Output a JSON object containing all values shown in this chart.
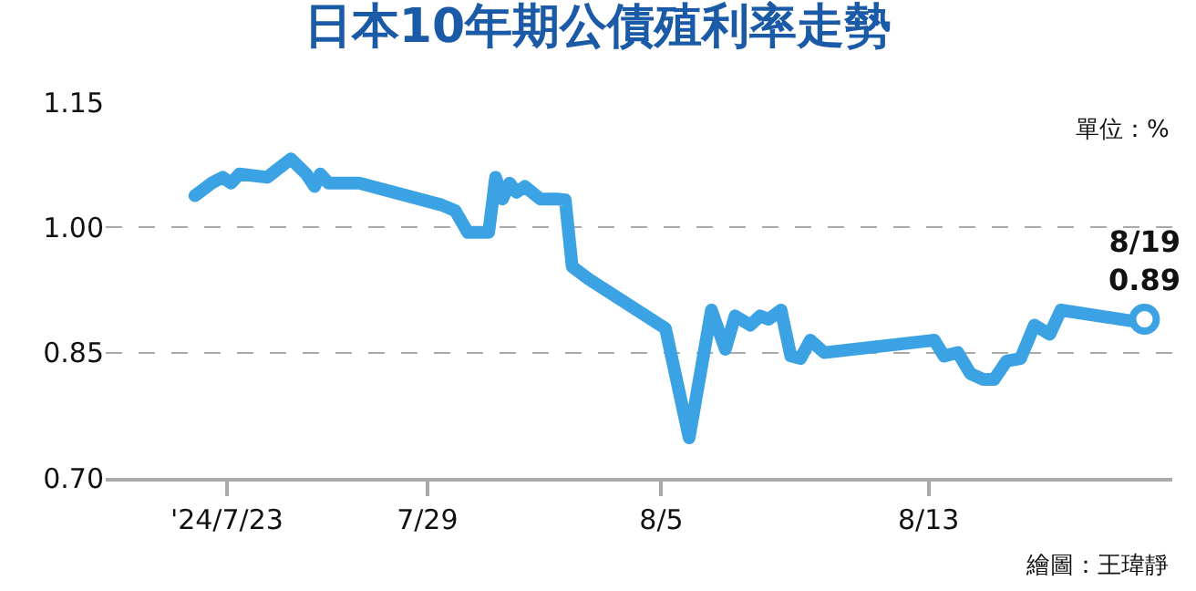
{
  "chart_data": {
    "type": "line",
    "title": "日本10年期公債殖利率走勢",
    "x": [
      "2024-07-22T01:00",
      "2024-07-22T13:00",
      "2024-07-22T21:00",
      "2024-07-23T03:00",
      "2024-07-23T09:00",
      "2024-07-24T05:00",
      "2024-07-24T22:00",
      "2024-07-25T09:00",
      "2024-07-25T15:00",
      "2024-07-25T19:00",
      "2024-07-26T01:00",
      "2024-07-26T23:00",
      "2024-07-29T10:00",
      "2024-07-29T20:00",
      "2024-07-30T05:00",
      "2024-07-30T20:00",
      "2024-07-31T01:00",
      "2024-07-31T06:00",
      "2024-07-31T11:00",
      "2024-07-31T16:00",
      "2024-07-31T22:00",
      "2024-08-01T09:00",
      "2024-08-01T21:00",
      "2024-08-02T03:00",
      "2024-08-02T08:00",
      "2024-08-02T20:00",
      "2024-08-05T03:00",
      "2024-08-05T20:00",
      "2024-08-06T12:00",
      "2024-08-06T22:00",
      "2024-08-07T05:00",
      "2024-08-07T16:00",
      "2024-08-07T23:00",
      "2024-08-08T05:00",
      "2024-08-08T14:00",
      "2024-08-08T21:00",
      "2024-08-09T04:00",
      "2024-08-09T11:00",
      "2024-08-09T21:00",
      "2024-08-13T04:00",
      "2024-08-13T11:00",
      "2024-08-13T21:00",
      "2024-08-14T06:00",
      "2024-08-14T15:00",
      "2024-08-14T23:00",
      "2024-08-15T08:00",
      "2024-08-15T18:00",
      "2024-08-16T04:00",
      "2024-08-16T15:00",
      "2024-08-16T23:00",
      "2024-08-19T06:00",
      "2024-08-19T11:00"
    ],
    "series": [
      {
        "color": "#3ba3e3",
        "values": [
          1.038,
          1.053,
          1.06,
          1.053,
          1.064,
          1.06,
          1.082,
          1.064,
          1.049,
          1.064,
          1.053,
          1.053,
          1.027,
          1.02,
          0.994,
          0.994,
          1.06,
          1.034,
          1.053,
          1.042,
          1.049,
          1.034,
          1.034,
          1.033,
          0.953,
          0.938,
          0.879,
          0.748,
          0.901,
          0.854,
          0.894,
          0.883,
          0.894,
          0.89,
          0.901,
          0.846,
          0.843,
          0.865,
          0.85,
          0.865,
          0.846,
          0.85,
          0.825,
          0.818,
          0.818,
          0.84,
          0.843,
          0.883,
          0.872,
          0.901,
          0.887,
          0.89
        ]
      }
    ],
    "xlim": [
      "2024-07-19T09:00",
      "2024-08-20T07:00"
    ],
    "xticks": [
      {
        "value": "2024-07-23",
        "label": "'24/7/23"
      },
      {
        "value": "2024-07-29",
        "label": "7/29"
      },
      {
        "value": "2024-08-05",
        "label": "8/5"
      },
      {
        "value": "2024-08-13",
        "label": "8/13"
      }
    ],
    "ylim": [
      0.7,
      1.15
    ],
    "yticks": [
      {
        "value": 0.7,
        "label": "0.70"
      },
      {
        "value": 0.85,
        "label": "0.85"
      },
      {
        "value": 1.0,
        "label": "1.00"
      },
      {
        "value": 1.15,
        "label": "1.15"
      }
    ],
    "grid": "y",
    "line_style": "solid",
    "annotations": [
      "單位：%",
      {
        "text": "8/19\n0.89",
        "x": "2024-08-19T11:00",
        "y": 0.89
      },
      "繪圖：王瑋靜"
    ]
  }
}
